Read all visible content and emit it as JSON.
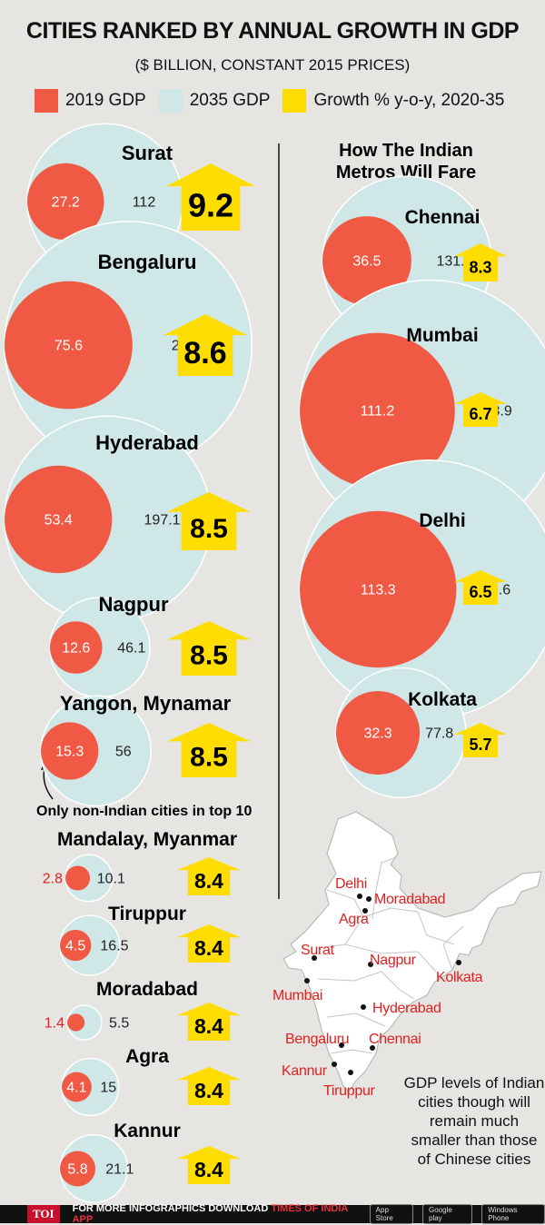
{
  "title": "CITIES RANKED BY ANNUAL GROWTH IN GDP",
  "subtitle": "($ BILLION, CONSTANT 2015 PRICES)",
  "legend": [
    {
      "label": "2019 GDP",
      "color": "#f05a44"
    },
    {
      "label": "2035 GDP",
      "color": "#cfe7e7"
    },
    {
      "label": "Growth % y-o-y, 2020-35",
      "color": "#ffdd00"
    }
  ],
  "metros_heading_line1": "How The Indian",
  "metros_heading_line2": "Metros Will Fare",
  "annotation": "Only non-Indian cities in top 10",
  "map_note": [
    "GDP levels of Indian",
    "cities though will",
    "remain much",
    "smaller than those",
    "of Chinese cities"
  ],
  "footer": {
    "logo": "TOI",
    "text_prefix": "FOR MORE  INFOGRAPHICS DOWNLOAD ",
    "text_app": "TIMES OF INDIA  APP",
    "badges": [
      "App Store",
      "Google play",
      "Windows Phone"
    ]
  },
  "chart_data": [
    {
      "type": "bubble",
      "title": "CITIES RANKED BY ANNUAL GROWTH IN GDP",
      "series": [
        {
          "name": "2019 GDP",
          "values": [
            27.2,
            75.6,
            53.4,
            12.6,
            15.3,
            2.8,
            4.5,
            1.4,
            4.1,
            5.8
          ]
        },
        {
          "name": "2035 GDP",
          "values": [
            112,
            282.3,
            197.1,
            46.1,
            56,
            10.1,
            16.5,
            5.5,
            15,
            21.1
          ]
        },
        {
          "name": "Growth % y-o-y, 2020-35",
          "values": [
            9.2,
            8.6,
            8.5,
            8.5,
            8.5,
            8.4,
            8.4,
            8.4,
            8.4,
            8.4
          ]
        }
      ],
      "categories": [
        "Surat",
        "Bengaluru",
        "Hyderabad",
        "Nagpur",
        "Yangon, Mynamar",
        "Mandalay, Myanmar",
        "Tiruppur",
        "Moradabad",
        "Agra",
        "Kannur"
      ],
      "value_labels": {
        "gdp2019": [
          "27.2",
          "75.6",
          "53.4",
          "12.6",
          "15.3",
          "2.8",
          "4.5",
          "1.4",
          "4.1",
          "5.8"
        ],
        "gdp2035": [
          "112",
          "282.3",
          "197.1",
          "46.1",
          "56",
          "10.1",
          "16.5",
          "5.5",
          "15",
          "21.1"
        ],
        "growth": [
          "9.2",
          "8.6",
          "8.5",
          "8.5",
          "8.5",
          "8.4",
          "8.4",
          "8.4",
          "8.4",
          "8.4"
        ]
      }
    },
    {
      "type": "bubble",
      "title": "How The Indian Metros Will Fare",
      "series": [
        {
          "name": "2019 GDP",
          "values": [
            36.5,
            111.2,
            113.3,
            32.3
          ]
        },
        {
          "name": "2035 GDP",
          "values": [
            131.6,
            313.9,
            308.6,
            77.8
          ]
        },
        {
          "name": "Growth % y-o-y, 2020-35",
          "values": [
            8.3,
            6.7,
            6.5,
            5.7
          ]
        }
      ],
      "categories": [
        "Chennai",
        "Mumbai",
        "Delhi",
        "Kolkata"
      ],
      "value_labels": {
        "gdp2019": [
          "36.5",
          "111.2",
          "113.3",
          "32.3"
        ],
        "gdp2035": [
          "131.6",
          "313.9",
          "308.6",
          "77.8"
        ],
        "growth": [
          "8.3",
          "6.7",
          "6.5",
          "5.7"
        ]
      }
    }
  ],
  "map": {
    "cities": [
      "Delhi",
      "Moradabad",
      "Agra",
      "Surat",
      "Nagpur",
      "Kolkata",
      "Mumbai",
      "Hyderabad",
      "Bengaluru",
      "Chennai",
      "Kannur",
      "Tiruppur"
    ],
    "label_color": "#e02020"
  }
}
